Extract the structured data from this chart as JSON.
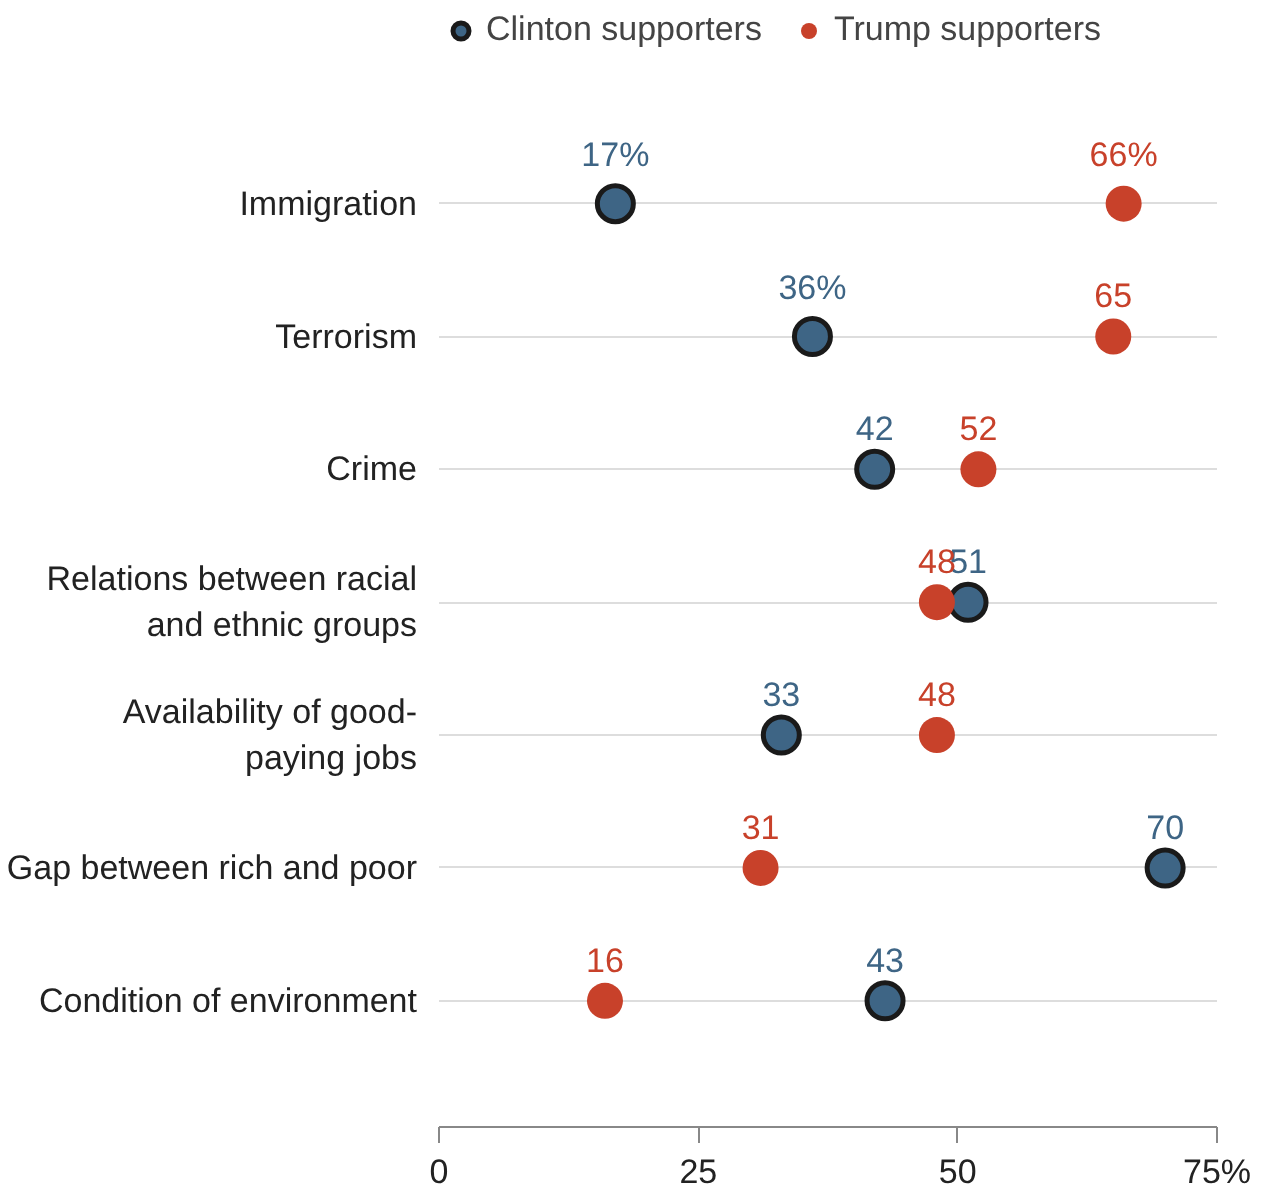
{
  "chart_data": {
    "type": "scatter",
    "orientation": "horizontal",
    "categories": [
      "Immigration",
      "Terrorism",
      "Crime",
      "Relations between racial\nand ethnic groups",
      "Availability of good-\npaying jobs",
      "Gap between rich and poor",
      "Condition of environment"
    ],
    "series": [
      {
        "name": "Clinton supporters",
        "color": "#3e6585",
        "values": [
          17,
          36,
          42,
          51,
          33,
          70,
          43
        ],
        "value_labels": [
          "17%",
          "36%",
          "42",
          "51",
          "33",
          "70",
          "43"
        ]
      },
      {
        "name": "Trump supporters",
        "color": "#c8412a",
        "values": [
          66,
          65,
          52,
          48,
          48,
          31,
          16
        ],
        "value_labels": [
          "66%",
          "65",
          "52",
          "48",
          "48",
          "31",
          "16"
        ]
      }
    ],
    "xlim": [
      0,
      75
    ],
    "xticks": [
      0,
      25,
      50,
      {
        "value": 75,
        "label": "75%"
      }
    ],
    "grid": "y",
    "legend": "top left",
    "marker": "circle"
  }
}
